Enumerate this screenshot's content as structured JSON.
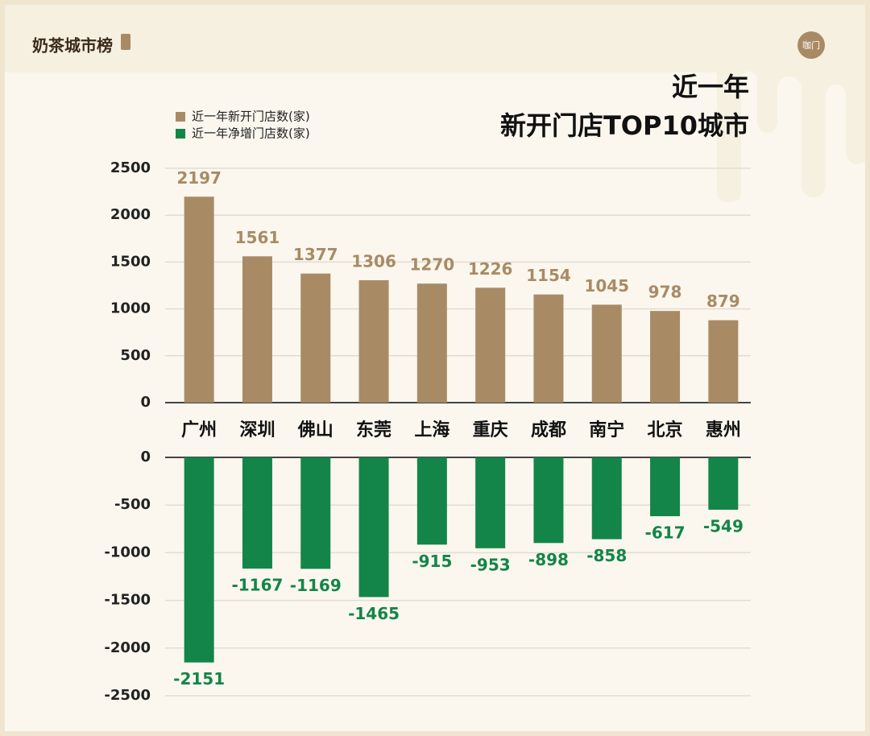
{
  "header": {
    "brand": "奶茶城市榜",
    "logo": "咖门"
  },
  "chart_data": [
    {
      "type": "bar",
      "title": "近一年",
      "subtitle": "新开门店TOP10城市",
      "categories": [
        "广州",
        "深圳",
        "佛山",
        "东莞",
        "上海",
        "重庆",
        "成都",
        "南宁",
        "北京",
        "惠州"
      ],
      "series": [
        {
          "name": "近一年新开门店数(家)",
          "color": "#a88b65",
          "values": [
            2197,
            1561,
            1377,
            1306,
            1270,
            1226,
            1154,
            1045,
            978,
            879
          ]
        }
      ],
      "ylim": [
        0,
        2500
      ],
      "yticks": [
        0,
        500,
        1000,
        1500,
        2000,
        2500
      ],
      "grid": true,
      "legend": "top-left"
    },
    {
      "type": "bar",
      "series": [
        {
          "name": "近一年净增门店数(家)",
          "color": "#138548",
          "values": [
            -2151,
            -1167,
            -1169,
            -1465,
            -915,
            -953,
            -898,
            -858,
            -617,
            -549
          ]
        }
      ],
      "ylim": [
        -2500,
        0
      ],
      "yticks": [
        -2500,
        -2000,
        -1500,
        -1000,
        -500,
        0
      ],
      "grid": true
    }
  ]
}
